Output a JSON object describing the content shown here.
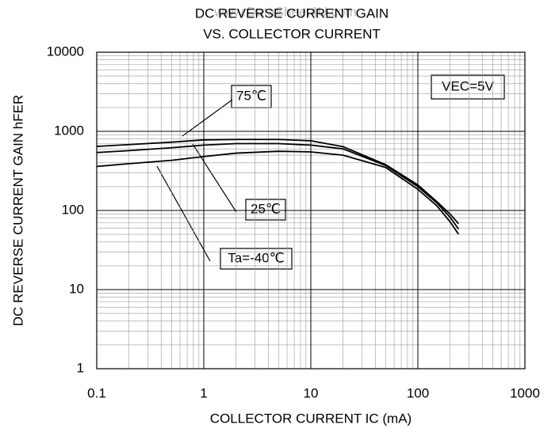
{
  "chart_data": {
    "type": "line",
    "title": [
      "DC REVERSE CURRENT GAIN",
      "VS. COLLECTOR CURRENT"
    ],
    "watermark": "www.DataSheet4U.com",
    "x_label": "COLLECTOR CURRENT IC (mA)",
    "y_label": "DC REVERSE CURRENT GAIN hFER",
    "x": [
      0.1,
      0.2,
      0.5,
      1,
      2,
      5,
      10,
      20,
      50,
      100,
      150,
      200,
      240
    ],
    "series": [
      {
        "name": "75℃",
        "color": "#000000",
        "values": [
          645,
          680,
          730,
          780,
          790,
          790,
          760,
          640,
          380,
          210,
          130,
          90,
          68
        ]
      },
      {
        "name": "25℃",
        "color": "#000000",
        "values": [
          540,
          570,
          620,
          670,
          700,
          700,
          670,
          600,
          370,
          200,
          125,
          82,
          58
        ]
      },
      {
        "name": "Ta=-40℃",
        "color": "#000000",
        "values": [
          360,
          390,
          430,
          480,
          530,
          560,
          550,
          500,
          350,
          185,
          115,
          72,
          50
        ]
      }
    ],
    "annotation": "VEC=5V",
    "xlim": [
      0.1,
      1000
    ],
    "ylim": [
      1,
      10000
    ],
    "xticks": [
      0.1,
      1,
      10,
      100,
      1000
    ],
    "yticks": [
      1,
      10,
      100,
      1000,
      10000
    ],
    "xlog": true,
    "ylog": true,
    "grid": true
  }
}
